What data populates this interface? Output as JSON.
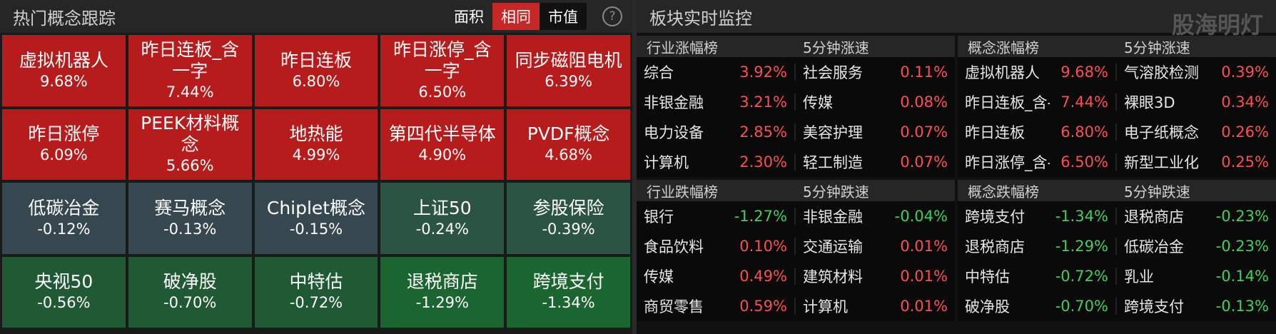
{
  "left": {
    "title": "热门概念跟踪",
    "toggles": [
      "面积",
      "相同",
      "市值"
    ],
    "help": "?",
    "tiles": [
      {
        "name": "虚拟机器人",
        "value": "9.68%",
        "color": "#b71c1c"
      },
      {
        "name": "昨日连板_含一字",
        "value": "7.44%",
        "color": "#b71c1c"
      },
      {
        "name": "昨日连板",
        "value": "6.80%",
        "color": "#b71c1c"
      },
      {
        "name": "昨日涨停_含一字",
        "value": "6.50%",
        "color": "#b71c1c"
      },
      {
        "name": "同步磁阻电机",
        "value": "6.39%",
        "color": "#b71c1c"
      },
      {
        "name": "昨日涨停",
        "value": "6.09%",
        "color": "#b71c1c"
      },
      {
        "name": "PEEK材料概念",
        "value": "5.66%",
        "color": "#b71c1c"
      },
      {
        "name": "地热能",
        "value": "4.99%",
        "color": "#b71c1c"
      },
      {
        "name": "第四代半导体",
        "value": "4.90%",
        "color": "#b71c1c"
      },
      {
        "name": "PVDF概念",
        "value": "4.68%",
        "color": "#b71c1c"
      },
      {
        "name": "低碳冶金",
        "value": "-0.12%",
        "color": "#37474f"
      },
      {
        "name": "赛马概念",
        "value": "-0.13%",
        "color": "#37474f"
      },
      {
        "name": "Chiplet概念",
        "value": "-0.15%",
        "color": "#37474f"
      },
      {
        "name": "上证50",
        "value": "-0.24%",
        "color": "#2c5443"
      },
      {
        "name": "参股保险",
        "value": "-0.39%",
        "color": "#2c5443"
      },
      {
        "name": "央视50",
        "value": "-0.56%",
        "color": "#1f5a35"
      },
      {
        "name": "破净股",
        "value": "-0.70%",
        "color": "#1f5a35"
      },
      {
        "name": "中特估",
        "value": "-0.72%",
        "color": "#1f5a35"
      },
      {
        "name": "退税商店",
        "value": "-1.29%",
        "color": "#1b6530"
      },
      {
        "name": "跨境支付",
        "value": "-1.34%",
        "color": "#1b6530"
      }
    ]
  },
  "right": {
    "title": "板块实时监控",
    "watermark": "股海明灯",
    "tables": [
      {
        "headers": [
          "行业涨幅榜",
          "5分钟涨速"
        ],
        "rows": [
          [
            "综合",
            "3.92%",
            "社会服务",
            "0.11%"
          ],
          [
            "非银金融",
            "3.21%",
            "传媒",
            "0.08%"
          ],
          [
            "电力设备",
            "2.85%",
            "美容护理",
            "0.07%"
          ],
          [
            "计算机",
            "2.30%",
            "轻工制造",
            "0.07%"
          ]
        ]
      },
      {
        "headers": [
          "概念涨幅榜",
          "5分钟涨速"
        ],
        "rows": [
          [
            "虚拟机器人",
            "9.68%",
            "气溶胶检测",
            "0.39%"
          ],
          [
            "昨日连板_含-",
            "7.44%",
            "裸眼3D",
            "0.34%"
          ],
          [
            "昨日连板",
            "6.80%",
            "电子纸概念",
            "0.26%"
          ],
          [
            "昨日涨停_含-",
            "6.50%",
            "新型工业化",
            "0.25%"
          ]
        ]
      },
      {
        "headers": [
          "行业跌幅榜",
          "5分钟跌速"
        ],
        "rows": [
          [
            "银行",
            "-1.27%",
            "非银金融",
            "-0.04%"
          ],
          [
            "食品饮料",
            "0.10%",
            "交通运输",
            "0.01%"
          ],
          [
            "传媒",
            "0.49%",
            "建筑材料",
            "0.01%"
          ],
          [
            "商贸零售",
            "0.59%",
            "计算机",
            "0.01%"
          ]
        ]
      },
      {
        "headers": [
          "概念跌幅榜",
          "5分钟跌速"
        ],
        "rows": [
          [
            "跨境支付",
            "-1.34%",
            "退税商店",
            "-0.23%"
          ],
          [
            "退税商店",
            "-1.29%",
            "低碳冶金",
            "-0.23%"
          ],
          [
            "中特估",
            "-0.72%",
            "乳业",
            "-0.14%"
          ],
          [
            "破净股",
            "-0.70%",
            "跨境支付",
            "-0.13%"
          ]
        ]
      }
    ]
  }
}
